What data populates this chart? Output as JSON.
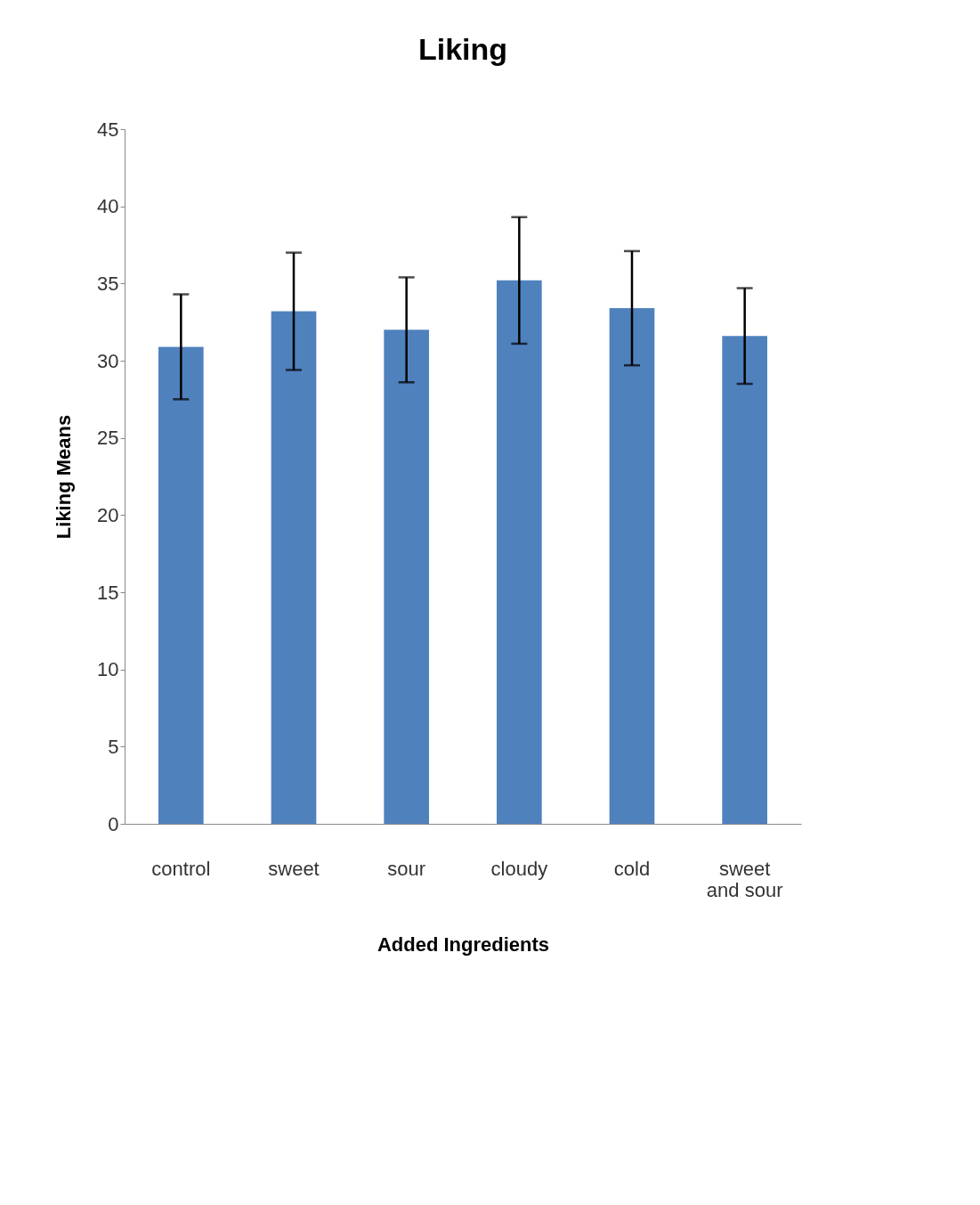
{
  "chart_data": {
    "type": "bar",
    "title": "Liking",
    "xlabel": "Added Ingredients",
    "ylabel": "Liking Means",
    "categories": [
      "control",
      "sweet",
      "sour",
      "cloudy",
      "cold",
      "sweet and sour"
    ],
    "values": [
      30.9,
      33.2,
      32.0,
      35.2,
      33.4,
      31.6
    ],
    "errors": [
      3.4,
      3.8,
      3.4,
      4.1,
      3.7,
      3.1
    ],
    "color": "#4f81bd",
    "ylim": [
      0,
      45
    ],
    "yticks": [
      0,
      5,
      10,
      15,
      20,
      25,
      30,
      35,
      40,
      45
    ],
    "grid": false
  }
}
